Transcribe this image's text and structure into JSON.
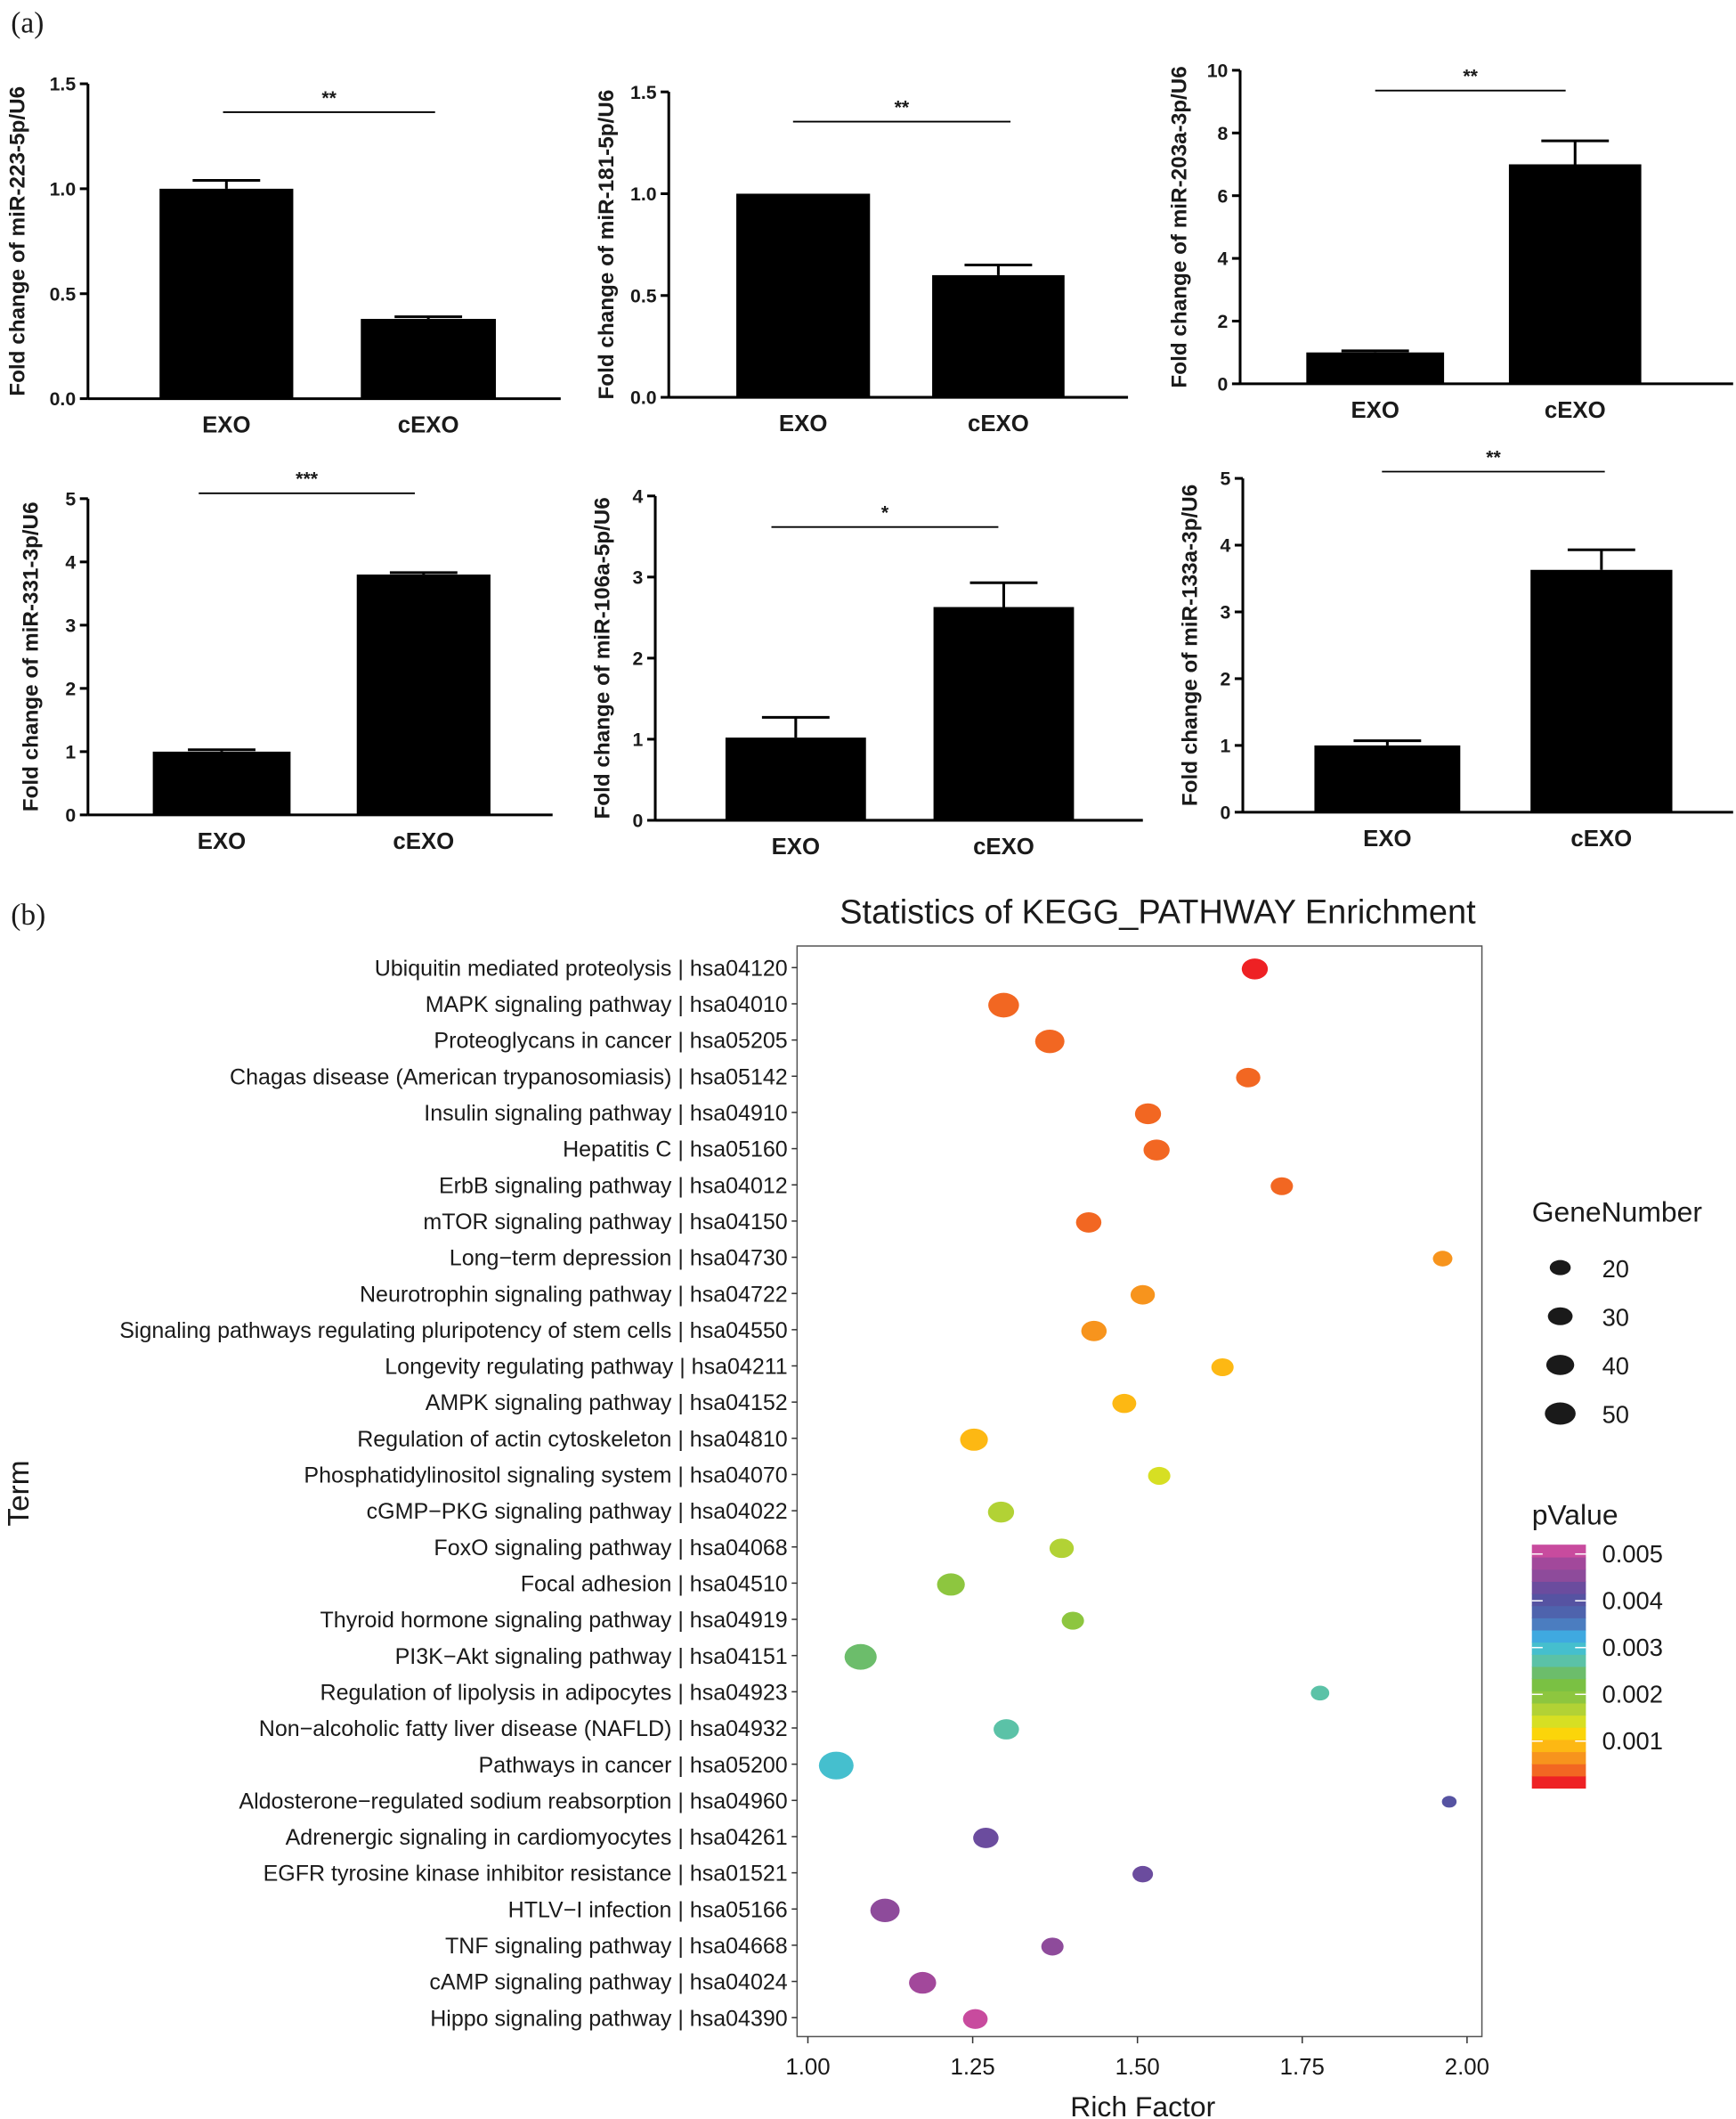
{
  "panel_labels": {
    "a": "(a)",
    "b": "(b)"
  },
  "chart_data": [
    {
      "type": "bar",
      "ylabel": "Fold change of miR-223-5p/U6",
      "categories": [
        "EXO",
        "cEXO"
      ],
      "values": [
        1.0,
        0.38
      ],
      "errors": [
        0.04,
        0.01
      ],
      "ylim": [
        0,
        1.5
      ],
      "yticks": [
        "0.0",
        "0.5",
        "1.0",
        "1.5"
      ],
      "significance": "**"
    },
    {
      "type": "bar",
      "ylabel": "Fold change of miR-181-5p/U6",
      "categories": [
        "EXO",
        "cEXO"
      ],
      "values": [
        1.0,
        0.6
      ],
      "errors": [
        0.0,
        0.05
      ],
      "ylim": [
        0,
        1.5
      ],
      "yticks": [
        "0.0",
        "0.5",
        "1.0",
        "1.5"
      ],
      "significance": "**"
    },
    {
      "type": "bar",
      "ylabel": "Fold change of miR-203a-3p/U6",
      "categories": [
        "EXO",
        "cEXO"
      ],
      "values": [
        1.0,
        7.0
      ],
      "errors": [
        0.05,
        0.75
      ],
      "ylim": [
        0,
        10
      ],
      "yticks": [
        "0",
        "2",
        "4",
        "6",
        "8",
        "10"
      ],
      "significance": "**"
    },
    {
      "type": "bar",
      "ylabel": "Fold change of miR-331-3p/U6",
      "categories": [
        "EXO",
        "cEXO"
      ],
      "values": [
        1.0,
        3.8
      ],
      "errors": [
        0.03,
        0.03
      ],
      "ylim": [
        0,
        5
      ],
      "yticks": [
        "0",
        "1",
        "2",
        "3",
        "4",
        "5"
      ],
      "significance": "***"
    },
    {
      "type": "bar",
      "ylabel": "Fold change of miR-106a-5p/U6",
      "categories": [
        "EXO",
        "cEXO"
      ],
      "values": [
        1.02,
        2.63
      ],
      "errors": [
        0.25,
        0.3
      ],
      "ylim": [
        0,
        4
      ],
      "yticks": [
        "0",
        "1",
        "2",
        "3",
        "4"
      ],
      "significance": "*"
    },
    {
      "type": "bar",
      "ylabel": "Fold change of miR-133a-3p/U6",
      "categories": [
        "EXO",
        "cEXO"
      ],
      "values": [
        1.0,
        3.63
      ],
      "errors": [
        0.07,
        0.3
      ],
      "ylim": [
        0,
        5
      ],
      "yticks": [
        "0",
        "1",
        "2",
        "3",
        "4",
        "5"
      ],
      "significance": "**"
    },
    {
      "type": "scatter",
      "title": "Statistics of KEGG_PATHWAY Enrichment",
      "xlabel": "Rich Factor",
      "ylabel": "Term",
      "xlim": [
        0.98,
        2.03
      ],
      "xticks": [
        "1.00",
        "1.25",
        "1.50",
        "1.75",
        "2.00"
      ],
      "terms": [
        "Ubiquitin mediated proteolysis | hsa04120",
        "MAPK signaling pathway | hsa04010",
        "Proteoglycans in cancer | hsa05205",
        "Chagas disease (American trypanosomiasis) | hsa05142",
        "Insulin signaling pathway | hsa04910",
        "Hepatitis C | hsa05160",
        "ErbB signaling pathway | hsa04012",
        "mTOR signaling pathway | hsa04150",
        "Long−term depression | hsa04730",
        "Neurotrophin signaling pathway | hsa04722",
        "Signaling pathways regulating pluripotency of stem cells | hsa04550",
        "Longevity regulating pathway | hsa04211",
        "AMPK signaling pathway | hsa04152",
        "Regulation of actin cytoskeleton | hsa04810",
        "Phosphatidylinositol signaling system | hsa04070",
        "cGMP−PKG signaling pathway | hsa04022",
        "FoxO signaling pathway | hsa04068",
        "Focal adhesion | hsa04510",
        "Thyroid hormone signaling pathway | hsa04919",
        "PI3K−Akt signaling pathway | hsa04151",
        "Regulation of lipolysis in adipocytes | hsa04923",
        "Non−alcoholic fatty liver disease (NAFLD) | hsa04932",
        "Pathways in cancer | hsa05200",
        "Aldosterone−regulated sodium reabsorption | hsa04960",
        "Adrenergic signaling in cardiomyocytes | hsa04261",
        "EGFR tyrosine kinase inhibitor resistance | hsa01521",
        "HTLV−I infection | hsa05166",
        "TNF signaling pathway | hsa04668",
        "cAMP signaling pathway | hsa04024",
        "Hippo signaling pathway | hsa04390"
      ],
      "rich_factor": [
        1.678,
        1.297,
        1.367,
        1.668,
        1.516,
        1.529,
        1.719,
        1.426,
        1.963,
        1.508,
        1.434,
        1.629,
        1.48,
        1.252,
        1.533,
        1.293,
        1.385,
        1.217,
        1.402,
        1.08,
        1.777,
        1.301,
        1.043,
        1.973,
        1.27,
        1.508,
        1.117,
        1.371,
        1.174,
        1.254
      ],
      "gene_number": [
        30,
        45,
        40,
        25,
        30,
        30,
        20,
        28,
        14,
        25,
        28,
        20,
        24,
        35,
        20,
        30,
        25,
        35,
        20,
        50,
        12,
        28,
        60,
        6,
        28,
        16,
        40,
        20,
        33,
        26
      ],
      "p_value": [
        0.0001,
        0.0003,
        0.0003,
        0.0004,
        0.0004,
        0.0004,
        0.0005,
        0.0005,
        0.0006,
        0.0007,
        0.0007,
        0.0008,
        0.0009,
        0.001,
        0.0013,
        0.0017,
        0.0018,
        0.0019,
        0.002,
        0.0024,
        0.0026,
        0.0027,
        0.003,
        0.0039,
        0.0042,
        0.0044,
        0.0045,
        0.0046,
        0.0049,
        0.005
      ],
      "size_legend": {
        "title": "GeneNumber",
        "values": [
          20,
          30,
          40,
          50
        ],
        "labels": [
          "20",
          "30",
          "40",
          "50"
        ]
      },
      "color_legend": {
        "title": "pValue",
        "labels": [
          "0.005",
          "0.004",
          "0.003",
          "0.002",
          "0.001"
        ],
        "ticks": [
          0.005,
          0.004,
          0.003,
          0.002,
          0.001
        ],
        "range": [
          0,
          0.0052
        ],
        "colors": [
          "#ee2124",
          "#f26722",
          "#f7941d",
          "#fdb813",
          "#fbd50a",
          "#d7df23",
          "#b2d235",
          "#8dc63f",
          "#7ac143",
          "#6cbd6b",
          "#5bc2a7",
          "#45bfce",
          "#3fa9e0",
          "#4b7dc0",
          "#4e63ad",
          "#5653a2",
          "#6b4c9e",
          "#8e4b9b",
          "#a2489b",
          "#c84b9e"
        ]
      }
    }
  ]
}
